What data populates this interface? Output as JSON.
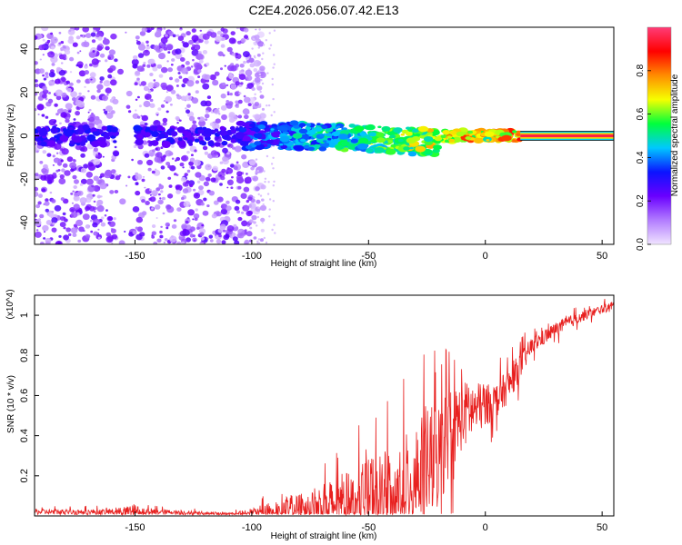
{
  "chart_data": [
    {
      "type": "heatmap",
      "title": "C2E4.2026.056.07.42.E13",
      "xlabel": "Height of straight line (km)",
      "ylabel": "Frequency (Hz)",
      "xlim": [
        -193,
        55
      ],
      "ylim": [
        -50,
        50
      ],
      "x_ticks": [
        -150,
        -100,
        -50,
        0,
        50
      ],
      "x_tick_labels": [
        "-150",
        "-100",
        "-50",
        "0",
        "50"
      ],
      "y_ticks": [
        -40,
        -20,
        0,
        20,
        40
      ],
      "y_tick_labels": [
        "-40",
        "-20",
        "0",
        "20",
        "40"
      ],
      "colorbar": {
        "label": "Normalized spectral amplitude",
        "range": [
          0,
          1
        ],
        "ticks": [
          0.0,
          0.2,
          0.4,
          0.6,
          0.8
        ],
        "tick_labels": [
          "0.0",
          "0.2",
          "0.4",
          "0.6",
          "0.8"
        ],
        "colors": [
          "#f0e4ff",
          "#b27cff",
          "#6a00ff",
          "#0b14ff",
          "#00c8ff",
          "#00ff3c",
          "#f6ff00",
          "#ff8c00",
          "#ff0000",
          "#ff3c78"
        ]
      },
      "features": [
        {
          "name": "scattered noise region",
          "x_range": [
            -193,
            -95
          ],
          "freq_range": [
            -50,
            50
          ],
          "amplitude": 0.15
        },
        {
          "name": "dominant band",
          "x_range": [
            -105,
            55
          ],
          "freq_center": 0,
          "amplitude_start": 0.3,
          "amplitude_end": 1.0
        }
      ]
    },
    {
      "type": "line",
      "xlabel": "Height of straight line (km)",
      "ylabel": "SNR (10 * v/v)",
      "y_multiplier": "(x10^4)",
      "xlim": [
        -193,
        55
      ],
      "ylim": [
        0,
        1.1
      ],
      "x_ticks": [
        -150,
        -100,
        -50,
        0,
        50
      ],
      "x_tick_labels": [
        "-150",
        "-100",
        "-50",
        "0",
        "50"
      ],
      "y_ticks": [
        0.2,
        0.4,
        0.6,
        0.8,
        1.0
      ],
      "y_tick_labels": [
        "0.2",
        "0.4",
        "0.6",
        "0.8",
        "1"
      ],
      "color": "#e8201f",
      "envelope": {
        "x": [
          -193,
          -160,
          -150,
          -140,
          -110,
          -100,
          -90,
          -80,
          -70,
          -60,
          -50,
          -40,
          -30,
          -25,
          -20,
          -15,
          -10,
          -5,
          0,
          5,
          10,
          15,
          20,
          30,
          40,
          50,
          55
        ],
        "base": [
          0.02,
          0.02,
          0.02,
          0.02,
          0.01,
          0.01,
          0.02,
          0.03,
          0.05,
          0.07,
          0.1,
          0.13,
          0.2,
          0.25,
          0.3,
          0.42,
          0.5,
          0.53,
          0.55,
          0.58,
          0.65,
          0.75,
          0.85,
          0.93,
          0.99,
          1.03,
          1.05
        ],
        "amplitude": [
          0.02,
          0.02,
          0.05,
          0.02,
          0.01,
          0.04,
          0.08,
          0.12,
          0.16,
          0.2,
          0.26,
          0.3,
          0.36,
          0.4,
          0.4,
          0.3,
          0.25,
          0.2,
          0.15,
          0.12,
          0.12,
          0.1,
          0.06,
          0.05,
          0.04,
          0.03,
          0.03
        ]
      }
    }
  ]
}
